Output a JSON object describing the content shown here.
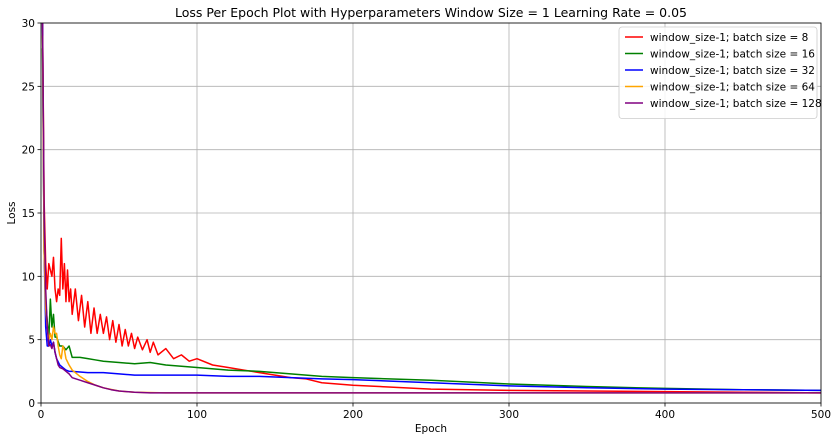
{
  "chart_data": {
    "type": "line",
    "title": "Loss Per Epoch Plot with Hyperparameters Window Size = 1 Learning Rate = 0.05",
    "xlabel": "Epoch",
    "ylabel": "Loss",
    "xlim": [
      0,
      500
    ],
    "ylim": [
      0,
      30
    ],
    "xticks": [
      0,
      100,
      200,
      300,
      400,
      500
    ],
    "yticks": [
      0,
      5,
      10,
      15,
      20,
      25,
      30
    ],
    "grid": true,
    "legend_position": "top-right",
    "series": [
      {
        "name": "window_size-1; batch size = 8",
        "color": "#ff0000",
        "points": [
          [
            1,
            30
          ],
          [
            2,
            16
          ],
          [
            3,
            11
          ],
          [
            4,
            9
          ],
          [
            5,
            11
          ],
          [
            6,
            10.5
          ],
          [
            7,
            10
          ],
          [
            8,
            11.5
          ],
          [
            9,
            9
          ],
          [
            10,
            8
          ],
          [
            11,
            9
          ],
          [
            12,
            8.5
          ],
          [
            13,
            13
          ],
          [
            14,
            9
          ],
          [
            15,
            11
          ],
          [
            16,
            8
          ],
          [
            17,
            10.5
          ],
          [
            18,
            8
          ],
          [
            19,
            9
          ],
          [
            20,
            7
          ],
          [
            22,
            9
          ],
          [
            24,
            6.5
          ],
          [
            26,
            8.5
          ],
          [
            28,
            6
          ],
          [
            30,
            8
          ],
          [
            32,
            5.5
          ],
          [
            34,
            7.5
          ],
          [
            36,
            5.5
          ],
          [
            38,
            7
          ],
          [
            40,
            5.5
          ],
          [
            42,
            6.8
          ],
          [
            44,
            5
          ],
          [
            46,
            6.5
          ],
          [
            48,
            4.8
          ],
          [
            50,
            6.2
          ],
          [
            52,
            4.5
          ],
          [
            54,
            5.8
          ],
          [
            56,
            4.5
          ],
          [
            58,
            5.5
          ],
          [
            60,
            4.3
          ],
          [
            62,
            5.2
          ],
          [
            65,
            4.2
          ],
          [
            68,
            5
          ],
          [
            70,
            4
          ],
          [
            72,
            4.8
          ],
          [
            75,
            3.8
          ],
          [
            80,
            4.3
          ],
          [
            85,
            3.5
          ],
          [
            90,
            3.8
          ],
          [
            95,
            3.3
          ],
          [
            100,
            3.5
          ],
          [
            110,
            3
          ],
          [
            120,
            2.8
          ],
          [
            130,
            2.6
          ],
          [
            140,
            2.4
          ],
          [
            150,
            2.2
          ],
          [
            160,
            2
          ],
          [
            170,
            1.9
          ],
          [
            180,
            1.6
          ],
          [
            200,
            1.4
          ],
          [
            250,
            1.1
          ],
          [
            300,
            1
          ],
          [
            350,
            0.95
          ],
          [
            400,
            0.9
          ],
          [
            450,
            0.85
          ],
          [
            500,
            0.8
          ]
        ]
      },
      {
        "name": "window_size-1; batch size = 16",
        "color": "#008000",
        "points": [
          [
            1,
            28
          ],
          [
            2,
            12
          ],
          [
            3,
            8
          ],
          [
            4,
            6.5
          ],
          [
            5,
            5
          ],
          [
            6,
            8.2
          ],
          [
            7,
            6
          ],
          [
            8,
            7
          ],
          [
            9,
            5.2
          ],
          [
            10,
            5.2
          ],
          [
            12,
            4.5
          ],
          [
            14,
            4.5
          ],
          [
            16,
            4.2
          ],
          [
            18,
            4.5
          ],
          [
            20,
            3.6
          ],
          [
            25,
            3.6
          ],
          [
            30,
            3.5
          ],
          [
            35,
            3.4
          ],
          [
            40,
            3.3
          ],
          [
            50,
            3.2
          ],
          [
            60,
            3.1
          ],
          [
            70,
            3.2
          ],
          [
            80,
            3
          ],
          [
            90,
            2.9
          ],
          [
            100,
            2.8
          ],
          [
            120,
            2.6
          ],
          [
            140,
            2.5
          ],
          [
            160,
            2.3
          ],
          [
            180,
            2.1
          ],
          [
            200,
            2
          ],
          [
            250,
            1.8
          ],
          [
            300,
            1.5
          ],
          [
            350,
            1.3
          ],
          [
            400,
            1.15
          ],
          [
            450,
            1.05
          ],
          [
            500,
            1
          ]
        ]
      },
      {
        "name": "window_size-1; batch size = 32",
        "color": "#0000ff",
        "points": [
          [
            1,
            30
          ],
          [
            2,
            12
          ],
          [
            3,
            6
          ],
          [
            4,
            4.5
          ],
          [
            5,
            4.5
          ],
          [
            6,
            5
          ],
          [
            7,
            4.5
          ],
          [
            8,
            4.8
          ],
          [
            9,
            4
          ],
          [
            10,
            3.5
          ],
          [
            12,
            3
          ],
          [
            14,
            2.8
          ],
          [
            16,
            2.6
          ],
          [
            18,
            2.5
          ],
          [
            20,
            2.5
          ],
          [
            30,
            2.4
          ],
          [
            40,
            2.4
          ],
          [
            50,
            2.3
          ],
          [
            60,
            2.2
          ],
          [
            80,
            2.2
          ],
          [
            100,
            2.2
          ],
          [
            120,
            2.1
          ],
          [
            140,
            2.1
          ],
          [
            160,
            2
          ],
          [
            180,
            1.9
          ],
          [
            200,
            1.85
          ],
          [
            250,
            1.6
          ],
          [
            300,
            1.35
          ],
          [
            350,
            1.2
          ],
          [
            400,
            1.1
          ],
          [
            450,
            1.05
          ],
          [
            500,
            1
          ]
        ]
      },
      {
        "name": "window_size-1; batch size = 64",
        "color": "#ffa500",
        "points": [
          [
            1,
            29
          ],
          [
            2,
            12
          ],
          [
            3,
            7.5
          ],
          [
            4,
            6
          ],
          [
            5,
            5
          ],
          [
            6,
            5.5
          ],
          [
            7,
            5
          ],
          [
            8,
            6
          ],
          [
            9,
            5.5
          ],
          [
            10,
            5.5
          ],
          [
            11,
            4.5
          ],
          [
            12,
            3.8
          ],
          [
            13,
            3.5
          ],
          [
            14,
            4.5
          ],
          [
            15,
            4.2
          ],
          [
            16,
            3.5
          ],
          [
            18,
            3
          ],
          [
            20,
            2.6
          ],
          [
            25,
            2.1
          ],
          [
            30,
            1.7
          ],
          [
            35,
            1.4
          ],
          [
            40,
            1.2
          ],
          [
            50,
            0.95
          ],
          [
            60,
            0.85
          ],
          [
            80,
            0.8
          ],
          [
            100,
            0.8
          ],
          [
            150,
            0.8
          ],
          [
            200,
            0.8
          ],
          [
            300,
            0.8
          ],
          [
            400,
            0.8
          ],
          [
            500,
            0.8
          ]
        ]
      },
      {
        "name": "window_size-1; batch size = 128",
        "color": "#800080",
        "points": [
          [
            1,
            30
          ],
          [
            2,
            15
          ],
          [
            3,
            9
          ],
          [
            4,
            6
          ],
          [
            5,
            4.5
          ],
          [
            6,
            4.6
          ],
          [
            7,
            4.3
          ],
          [
            8,
            4.8
          ],
          [
            9,
            4
          ],
          [
            10,
            3.5
          ],
          [
            11,
            3
          ],
          [
            12,
            2.8
          ],
          [
            14,
            2.7
          ],
          [
            16,
            2.5
          ],
          [
            18,
            2.3
          ],
          [
            20,
            2
          ],
          [
            25,
            1.8
          ],
          [
            30,
            1.6
          ],
          [
            35,
            1.4
          ],
          [
            40,
            1.2
          ],
          [
            45,
            1.05
          ],
          [
            50,
            0.95
          ],
          [
            60,
            0.85
          ],
          [
            70,
            0.8
          ],
          [
            100,
            0.8
          ],
          [
            150,
            0.8
          ],
          [
            200,
            0.8
          ],
          [
            300,
            0.8
          ],
          [
            400,
            0.8
          ],
          [
            500,
            0.8
          ]
        ]
      }
    ]
  }
}
